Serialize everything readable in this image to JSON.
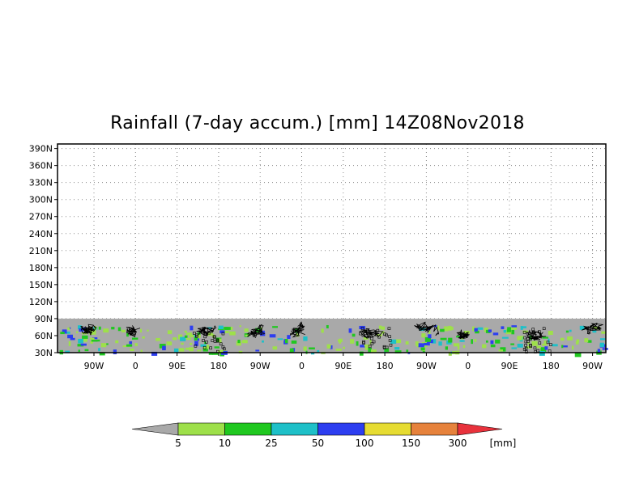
{
  "title": "Rainfall (7-day accum.) [mm] 14Z08Nov2018",
  "map": {
    "lat_ticks": [
      "30N",
      "60N",
      "90N",
      "120N",
      "150N",
      "180N",
      "210N",
      "240N",
      "270N",
      "300N",
      "330N",
      "360N",
      "390N"
    ],
    "lon_ticks": [
      "90W",
      "0",
      "90E",
      "180",
      "90W",
      "0",
      "90E",
      "180",
      "90W",
      "0",
      "90E",
      "180",
      "90W"
    ],
    "lat_range": [
      30,
      398
    ],
    "data_band_top_lat": 90,
    "grid": "dotted",
    "colors": {
      "no_data": "#a9a9a9",
      "land": "#000000",
      "frame": "#000000"
    }
  },
  "colorbar": {
    "unit_label": "[mm]",
    "below_color": "#a9a9a9",
    "above_color": "#e8323c",
    "bins": [
      {
        "label": "5",
        "color": "#9ee04a"
      },
      {
        "label": "10",
        "color": "#20c820"
      },
      {
        "label": "25",
        "color": "#1ec0c8"
      },
      {
        "label": "50",
        "color": "#2d3ef0"
      },
      {
        "label": "100",
        "color": "#e6dc32"
      },
      {
        "label": "150",
        "color": "#e6823c"
      },
      {
        "label": "300",
        "color": ""
      }
    ]
  }
}
